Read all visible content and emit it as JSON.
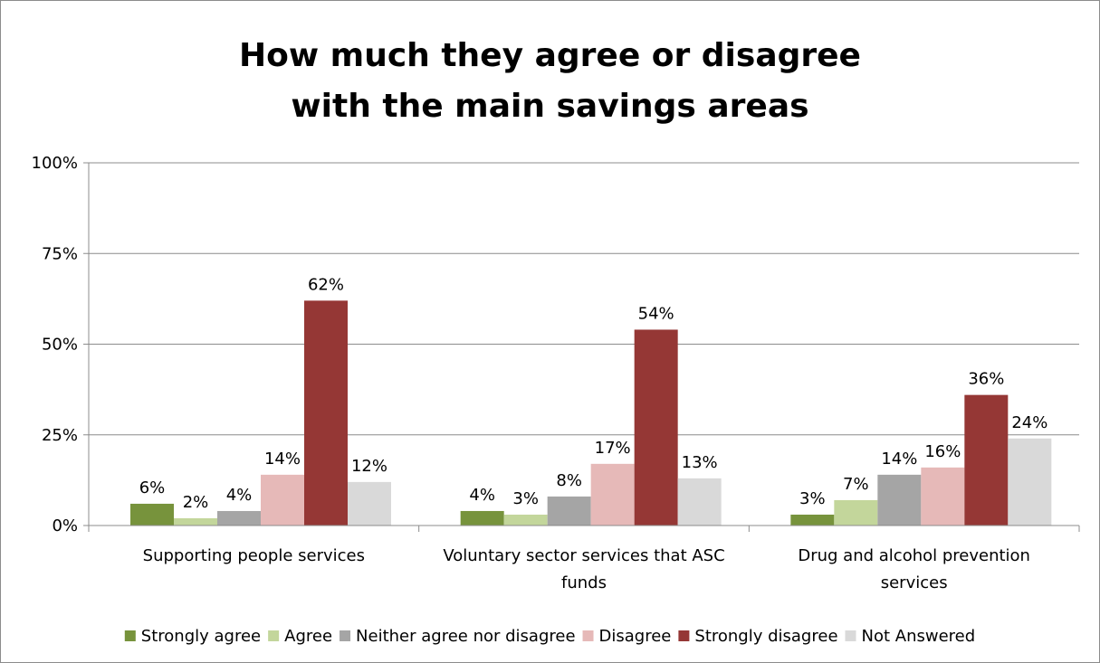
{
  "chart_data": {
    "type": "bar",
    "title_lines": [
      "How much they agree or disagree",
      "with the main savings areas"
    ],
    "xlabel": "",
    "ylabel": "",
    "ylim": [
      0,
      100
    ],
    "y_ticks": [
      "0%",
      "25%",
      "50%",
      "75%",
      "100%"
    ],
    "y_tick_values": [
      0,
      25,
      50,
      75,
      100
    ],
    "grid": true,
    "legend_position": "bottom",
    "categories": [
      [
        "Supporting people services"
      ],
      [
        "Voluntary sector services that ASC",
        "funds"
      ],
      [
        "Drug and alcohol prevention",
        "services"
      ]
    ],
    "series": [
      {
        "name": "Strongly agree",
        "color": "#77933c",
        "values": [
          6,
          4,
          3
        ],
        "labels": [
          "6%",
          "4%",
          "3%"
        ]
      },
      {
        "name": "Agree",
        "color": "#c3d69b",
        "values": [
          2,
          3,
          7
        ],
        "labels": [
          "2%",
          "3%",
          "7%"
        ]
      },
      {
        "name": "Neither agree nor disagree",
        "color": "#a5a5a5",
        "values": [
          4,
          8,
          14
        ],
        "labels": [
          "4%",
          "8%",
          "14%"
        ]
      },
      {
        "name": "Disagree",
        "color": "#e6b9b8",
        "values": [
          14,
          17,
          16
        ],
        "labels": [
          "14%",
          "17%",
          "16%"
        ]
      },
      {
        "name": "Strongly disagree",
        "color": "#953735",
        "values": [
          62,
          54,
          36
        ],
        "labels": [
          "62%",
          "54%",
          "36%"
        ]
      },
      {
        "name": "Not Answered",
        "color": "#d9d9d9",
        "values": [
          12,
          13,
          24
        ],
        "labels": [
          "12%",
          "13%",
          "24%"
        ]
      }
    ]
  }
}
